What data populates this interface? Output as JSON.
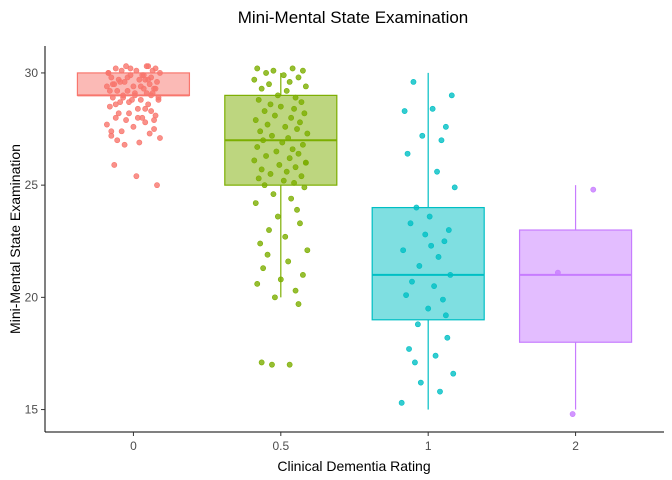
{
  "chart_data": {
    "type": "boxplot",
    "title": "Mini-Mental State Examination",
    "xlabel": "Clinical Dementia Rating",
    "ylabel": "Mini-Mental State Examination",
    "categories": [
      "0",
      "0.5",
      "1",
      "2"
    ],
    "ylim": [
      14,
      31.2
    ],
    "yticks": [
      15,
      20,
      25,
      30
    ],
    "grid": false,
    "legend": "none",
    "colors": [
      "#F8766D",
      "#7CAE00",
      "#00BFC4",
      "#C77CFF"
    ],
    "boxes": [
      {
        "category": "0",
        "min": 29,
        "q1": 29,
        "median": 29,
        "q3": 30,
        "max": 30
      },
      {
        "category": "0.5",
        "min": 20,
        "q1": 25,
        "median": 27,
        "q3": 29,
        "max": 30
      },
      {
        "category": "1",
        "min": 15,
        "q1": 19,
        "median": 21,
        "q3": 24,
        "max": 30
      },
      {
        "category": "2",
        "min": 15,
        "q1": 18,
        "median": 21,
        "q3": 23,
        "max": 25
      }
    ],
    "points": [
      {
        "category": "0",
        "jitter": [
          -0.05,
          0.1,
          -0.12,
          0.15,
          0.02,
          -0.08,
          0.18,
          -0.17,
          0.06,
          -0.02,
          0.12,
          -0.15,
          0.08,
          -0.1,
          0.04,
          0.16,
          -0.06,
          0.11,
          -0.13,
          0.0,
          -0.18,
          0.14,
          0.07,
          -0.04,
          -0.11,
          0.09,
          0.13,
          -0.07,
          0.01,
          -0.14,
          0.17,
          -0.01,
          0.05,
          -0.09,
          0.1,
          -0.16,
          0.03,
          0.12,
          -0.03,
          0.15,
          -0.12,
          0.06,
          -0.05,
          0.08,
          -0.18,
          0.0,
          0.14,
          -0.08,
          0.11,
          -0.15,
          0.18,
          -0.11,
          0.04,
          -0.06,
          0.02,
          0.16,
          -0.13,
          0.09,
          -0.02,
          0.13,
          -0.17,
          0.07,
          -0.04,
          0.1,
          -0.09,
          -0.14,
          0.05,
          0.15,
          -0.16,
          0.01,
          0.12,
          -0.07,
          0.17,
          -0.03,
          -0.12,
          0.08,
          -0.1,
          0.03,
          0.14,
          -0.15
        ],
        "values": [
          30.3,
          30.3,
          30.2,
          30.2,
          30.1,
          30.1,
          30.0,
          30.0,
          29.9,
          29.9,
          29.8,
          29.8,
          29.7,
          29.7,
          29.7,
          29.6,
          29.6,
          29.5,
          29.5,
          29.4,
          29.4,
          29.3,
          29.3,
          29.2,
          29.2,
          29.1,
          29.1,
          29.0,
          29.0,
          28.9,
          28.9,
          28.8,
          28.8,
          28.7,
          28.6,
          28.5,
          28.4,
          28.3,
          28.2,
          28.1,
          28.0,
          28.0,
          27.9,
          27.8,
          27.7,
          27.6,
          27.5,
          27.4,
          27.3,
          27.2,
          27.1,
          27.0,
          26.9,
          26.8,
          25.4,
          25.0,
          25.9,
          30.3,
          30.2,
          30.1,
          30.0,
          29.9,
          29.8,
          29.7,
          29.6,
          29.5,
          29.4,
          29.3,
          29.2,
          29.1,
          29.0,
          28.9,
          28.8,
          28.7,
          28.6,
          28.4,
          28.2,
          28.0,
          27.9,
          27.4
        ]
      },
      {
        "category": "0.5",
        "jitter": [
          -0.16,
          0.08,
          -0.05,
          0.15,
          -0.1,
          0.02,
          0.12,
          -0.18,
          0.06,
          -0.08,
          0.17,
          -0.13,
          0.04,
          -0.02,
          0.1,
          -0.15,
          0.14,
          -0.07,
          0.0,
          0.09,
          -0.11,
          0.16,
          -0.04,
          0.07,
          -0.17,
          0.13,
          -0.09,
          0.03,
          0.11,
          -0.14,
          0.18,
          -0.06,
          0.05,
          -0.12,
          0.01,
          0.15,
          -0.16,
          0.08,
          -0.03,
          0.12,
          -0.1,
          0.06,
          -0.18,
          0.17,
          -0.01,
          0.1,
          -0.13,
          0.04,
          -0.07,
          0.14,
          -0.15,
          0.02,
          0.09,
          -0.11,
          0.16,
          -0.05,
          0.07,
          -0.17,
          0.11,
          -0.02,
          0.13,
          -0.08,
          0.03,
          -0.14,
          0.18,
          -0.09,
          0.05,
          -0.12,
          0.15,
          0.0,
          -0.16,
          0.1,
          -0.04,
          0.12,
          -0.13,
          0.06,
          -0.06,
          0.17
        ],
        "values": [
          30.2,
          30.2,
          30.1,
          30.1,
          30.0,
          29.9,
          29.8,
          29.7,
          29.6,
          29.5,
          29.4,
          29.3,
          29.2,
          29.0,
          28.9,
          28.8,
          28.7,
          28.6,
          28.5,
          28.4,
          28.3,
          28.2,
          28.1,
          28.0,
          27.9,
          27.8,
          27.7,
          27.6,
          27.5,
          27.4,
          27.3,
          27.2,
          27.1,
          27.0,
          26.9,
          26.8,
          26.7,
          26.6,
          26.5,
          26.4,
          26.3,
          26.2,
          26.1,
          26.0,
          25.9,
          25.8,
          25.7,
          25.6,
          25.5,
          25.4,
          25.3,
          25.2,
          25.1,
          25.0,
          24.9,
          24.6,
          24.4,
          24.2,
          23.9,
          23.6,
          23.3,
          23.0,
          22.7,
          22.4,
          22.1,
          21.9,
          21.6,
          21.3,
          21.0,
          20.8,
          20.6,
          20.3,
          20.0,
          19.7,
          17.1,
          17.0,
          17.0,
          26.0
        ]
      },
      {
        "category": "1",
        "jitter": [
          -0.1,
          0.16,
          0.03,
          -0.16,
          0.12,
          -0.04,
          0.09,
          -0.14,
          0.06,
          0.18,
          -0.08,
          0.01,
          -0.12,
          0.14,
          -0.02,
          0.11,
          -0.17,
          0.07,
          -0.06,
          0.15,
          -0.11,
          0.04,
          -0.15,
          0.1,
          0.0,
          -0.07,
          0.13,
          -0.13,
          0.05,
          -0.09,
          0.17,
          -0.05,
          0.08,
          -0.18,
          0.02,
          0.12
        ],
        "values": [
          29.6,
          29.0,
          28.4,
          28.3,
          27.6,
          27.2,
          27.0,
          26.4,
          25.6,
          24.9,
          24.0,
          23.6,
          23.3,
          23.0,
          22.8,
          22.5,
          22.1,
          21.8,
          21.4,
          21.0,
          20.7,
          20.5,
          20.1,
          19.9,
          19.5,
          18.8,
          18.2,
          17.7,
          17.4,
          17.1,
          16.6,
          16.2,
          15.8,
          15.3,
          22.3,
          19.2
        ]
      },
      {
        "category": "2",
        "jitter": [
          0.12,
          -0.12,
          -0.02
        ],
        "values": [
          24.8,
          21.1,
          14.8
        ]
      }
    ]
  }
}
